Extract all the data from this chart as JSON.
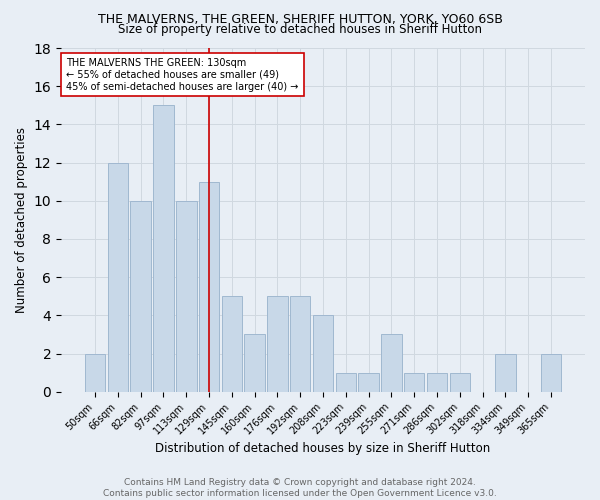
{
  "title": "THE MALVERNS, THE GREEN, SHERIFF HUTTON, YORK, YO60 6SB",
  "subtitle": "Size of property relative to detached houses in Sheriff Hutton",
  "xlabel": "Distribution of detached houses by size in Sheriff Hutton",
  "ylabel": "Number of detached properties",
  "footer_line1": "Contains HM Land Registry data © Crown copyright and database right 2024.",
  "footer_line2": "Contains public sector information licensed under the Open Government Licence v3.0.",
  "bar_labels": [
    "50sqm",
    "66sqm",
    "82sqm",
    "97sqm",
    "113sqm",
    "129sqm",
    "145sqm",
    "160sqm",
    "176sqm",
    "192sqm",
    "208sqm",
    "223sqm",
    "239sqm",
    "255sqm",
    "271sqm",
    "286sqm",
    "302sqm",
    "318sqm",
    "334sqm",
    "349sqm",
    "365sqm"
  ],
  "bar_values": [
    2,
    12,
    10,
    15,
    10,
    11,
    5,
    3,
    5,
    5,
    4,
    1,
    1,
    3,
    1,
    1,
    1,
    0,
    2,
    0,
    2
  ],
  "bar_color": "#c8d8e8",
  "bar_edge_color": "#a0b8d0",
  "vline_x": 5.0,
  "vline_color": "#cc0000",
  "annotation_text": "THE MALVERNS THE GREEN: 130sqm\n← 55% of detached houses are smaller (49)\n45% of semi-detached houses are larger (40) →",
  "annotation_box_color": "white",
  "annotation_box_edge": "#cc0000",
  "ylim": [
    0,
    18
  ],
  "yticks": [
    0,
    2,
    4,
    6,
    8,
    10,
    12,
    14,
    16,
    18
  ],
  "grid_color": "#d0d8e0",
  "bg_color": "#e8eef5",
  "title_fontsize": 9,
  "subtitle_fontsize": 8.5,
  "ylabel_fontsize": 8.5,
  "xlabel_fontsize": 8.5,
  "tick_fontsize": 7,
  "annotation_fontsize": 7,
  "footer_fontsize": 6.5,
  "footer_color": "#666666"
}
